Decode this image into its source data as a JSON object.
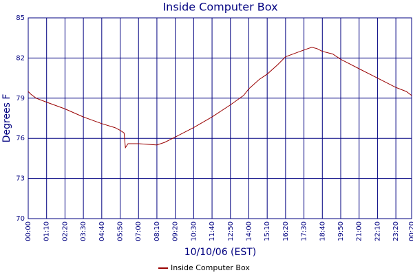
{
  "chart_data": {
    "type": "line",
    "title": "Inside Computer Box",
    "x_label": "10/10/06 (EST)",
    "y_label": "Degrees F",
    "x": [
      0,
      10,
      30,
      70,
      140,
      210,
      280,
      330,
      350,
      365,
      370,
      380,
      420,
      490,
      520,
      560,
      630,
      700,
      770,
      820,
      840,
      880,
      910,
      950,
      980,
      1050,
      1080,
      1100,
      1120,
      1160,
      1190,
      1260,
      1330,
      1400,
      1440,
      1460
    ],
    "series": [
      {
        "name": "Inside Computer Box",
        "color": "#990000",
        "values": [
          79.5,
          79.3,
          79.0,
          78.7,
          78.2,
          77.6,
          77.1,
          76.8,
          76.6,
          76.4,
          75.3,
          75.6,
          75.6,
          75.5,
          75.7,
          76.1,
          76.8,
          77.6,
          78.5,
          79.2,
          79.7,
          80.4,
          80.8,
          81.5,
          82.1,
          82.6,
          82.8,
          82.7,
          82.5,
          82.3,
          81.9,
          81.2,
          80.5,
          79.8,
          79.5,
          79.2
        ]
      }
    ],
    "xlim": [
      0,
      1460
    ],
    "xticks": [
      {
        "value": 0,
        "label": "00:00"
      },
      {
        "value": 70,
        "label": "01:10"
      },
      {
        "value": 140,
        "label": "02:20"
      },
      {
        "value": 210,
        "label": "03:30"
      },
      {
        "value": 280,
        "label": "04:40"
      },
      {
        "value": 350,
        "label": "05:50"
      },
      {
        "value": 420,
        "label": "07:00"
      },
      {
        "value": 490,
        "label": "08:10"
      },
      {
        "value": 560,
        "label": "09:20"
      },
      {
        "value": 630,
        "label": "10:30"
      },
      {
        "value": 700,
        "label": "11:40"
      },
      {
        "value": 770,
        "label": "12:50"
      },
      {
        "value": 840,
        "label": "14:00"
      },
      {
        "value": 910,
        "label": "15:10"
      },
      {
        "value": 980,
        "label": "16:20"
      },
      {
        "value": 1050,
        "label": "17:30"
      },
      {
        "value": 1120,
        "label": "18:40"
      },
      {
        "value": 1190,
        "label": "19:50"
      },
      {
        "value": 1260,
        "label": "21:00"
      },
      {
        "value": 1330,
        "label": "22:10"
      },
      {
        "value": 1400,
        "label": "23:20"
      },
      {
        "value": 1460,
        "label": "00:20"
      }
    ],
    "ylim": [
      70,
      85
    ],
    "yticks": [
      70,
      73,
      76,
      79,
      82,
      85
    ],
    "grid": true,
    "legend": "bottom"
  }
}
